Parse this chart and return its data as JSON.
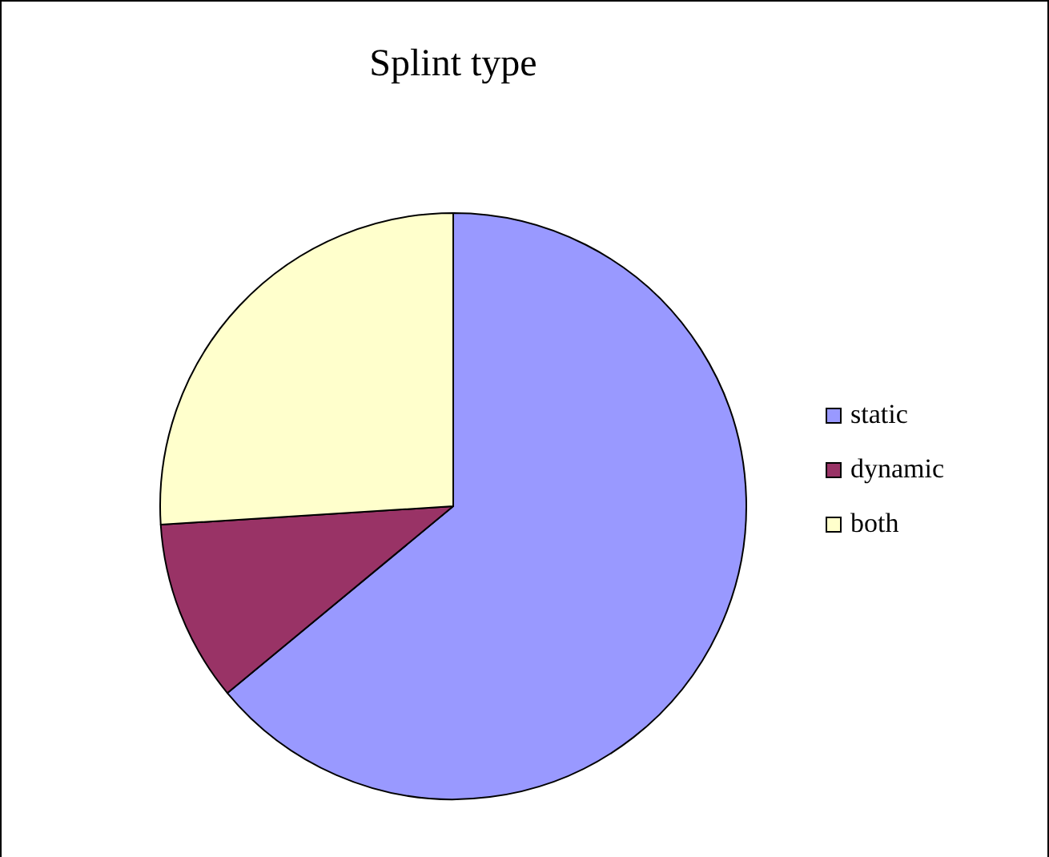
{
  "chart_data": {
    "type": "pie",
    "title": "Splint type",
    "categories": [
      "static",
      "dynamic",
      "both"
    ],
    "values": [
      64,
      10,
      26
    ],
    "colors": [
      "#9999ff",
      "#993366",
      "#ffffcc"
    ],
    "legend": "right"
  }
}
